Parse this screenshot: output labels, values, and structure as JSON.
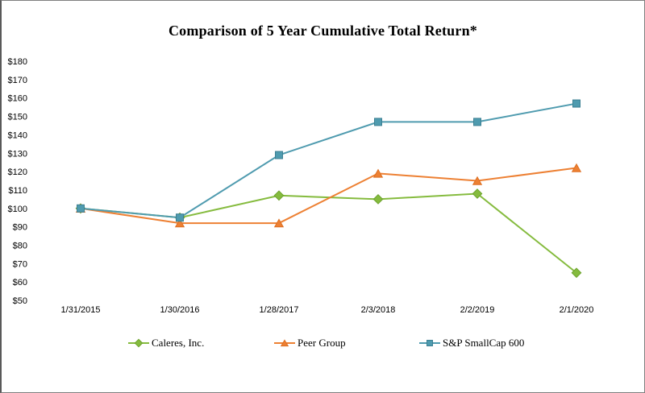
{
  "title": "Comparison of 5 Year Cumulative Total Return*",
  "chart_data": {
    "type": "line",
    "x": [
      "1/31/2015",
      "1/30/2016",
      "1/28/2017",
      "2/3/2018",
      "2/2/2019",
      "2/1/2020"
    ],
    "series": [
      {
        "name": "Caleres, Inc.",
        "marker": "diamond",
        "color": "#85BB3E",
        "edge": "#6da32e",
        "values": [
          100,
          95,
          107,
          105,
          108,
          65
        ]
      },
      {
        "name": "Peer Group",
        "marker": "triangle",
        "color": "#ED8033",
        "edge": "#dd6f22",
        "values": [
          100,
          92,
          92,
          119,
          115,
          122
        ]
      },
      {
        "name": "S&P SmallCap 600",
        "marker": "square",
        "color": "#4F9BAF",
        "edge": "#3d8093",
        "values": [
          100,
          95,
          129,
          147,
          147,
          157
        ]
      }
    ],
    "ylabel": "",
    "xlabel": "",
    "ylim": [
      50,
      180
    ],
    "ytick_step": 10,
    "ytick_prefix": "$",
    "yticks": [
      "$180",
      "$170",
      "$160",
      "$150",
      "$140",
      "$130",
      "$120",
      "$110",
      "$100",
      "$90",
      "$80",
      "$70",
      "$60",
      "$50"
    ],
    "grid": false,
    "legend_position": "bottom"
  }
}
